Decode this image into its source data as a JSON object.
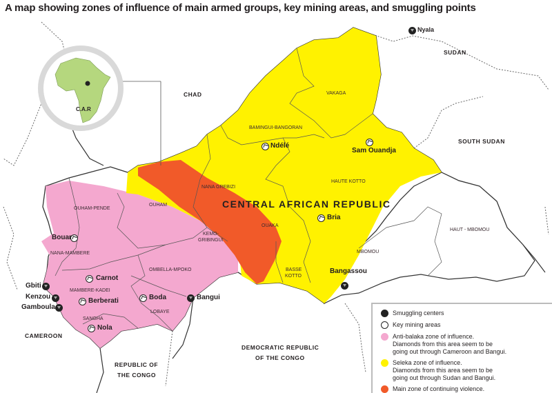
{
  "title": "A map showing zones of influence of main armed groups, key mining areas, and smuggling points",
  "colors": {
    "anti_balaka": "#f4a8cf",
    "seleka": "#fff200",
    "violence": "#f15a29",
    "inset_ring": "#d9d9d9",
    "africa": "#b5d77e"
  },
  "inset": {
    "label": "C.A.R"
  },
  "countries": {
    "sudan": "SUDAN",
    "chad": "CHAD",
    "south_sudan": "SOUTH SUDAN",
    "cameroon": "CAMEROON",
    "congo_1": "REPUBLIC OF",
    "congo_2": "THE CONGO",
    "drc_1": "DEMOCRATIC REPUBLIC",
    "drc_2": "OF THE CONGO",
    "car": "CENTRAL AFRICAN REPUBLIC"
  },
  "prefectures": [
    "VAKAGA",
    "BAMINGUI-BANGORAN",
    "HAUTE KOTTO",
    "NANA GREBIZI",
    "OUHAM",
    "OUHAM-PENDE",
    "KEMO-",
    "GRIBINGUI",
    "OUAKA",
    "HAUT - MBOMOU",
    "NANA-MAMBERE",
    "MBOMOU",
    "BASSE",
    "KOTTO",
    "OMBELLA-MPOKO",
    "MAMBERE-KADEI",
    "LOBAYE",
    "SANGHA"
  ],
  "mining_areas": [
    "Ndélé",
    "Sam Ouandja",
    "Bria",
    "Bouar",
    "Carnot",
    "Berberati",
    "Boda",
    "Nola"
  ],
  "smuggling_centers": [
    "Nyala",
    "Bangassou",
    "Bangui",
    "Gbiti",
    "Kenzou",
    "Gamboula"
  ],
  "legend": [
    {
      "icon": "smuggling-center-icon",
      "lines": [
        "Smuggling centers"
      ]
    },
    {
      "icon": "mining-area-icon",
      "lines": [
        "Key mining areas"
      ]
    },
    {
      "icon": "pink-swatch",
      "lines": [
        "Anti-balaka zone of influence.",
        "Diamonds from this area seem to be",
        "going out through Cameroon and Bangui."
      ]
    },
    {
      "icon": "yellow-swatch",
      "lines": [
        "Seleka zone of influence.",
        "Diamonds from this area seem to be",
        "going out through Sudan and Bangui."
      ]
    },
    {
      "icon": "orange-swatch",
      "lines": [
        "Main zone of continuing violence."
      ]
    }
  ]
}
